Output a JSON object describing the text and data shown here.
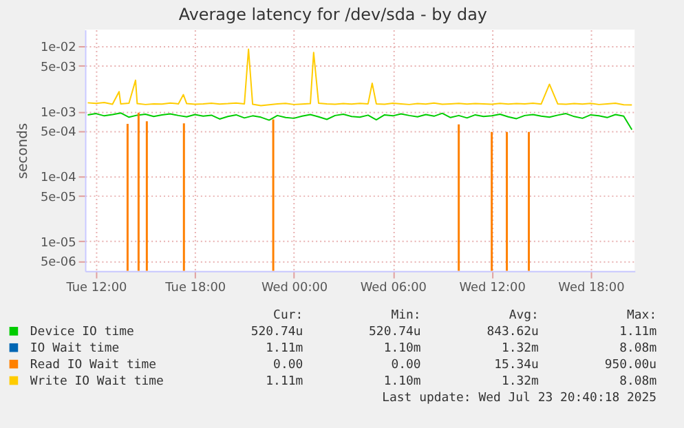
{
  "chart_data": {
    "type": "line",
    "title": "Average latency for /dev/sda - by day",
    "ylabel": "seconds",
    "log": true,
    "grid": true,
    "legend": "bottom",
    "marker": "none",
    "line_style": "solid",
    "xlim": [
      "2025-07-22T11:20",
      "2025-07-23T20:40"
    ],
    "xticks": [
      {
        "value": "2025-07-22T12:00",
        "label": "Tue 12:00"
      },
      {
        "value": "2025-07-22T18:00",
        "label": "Tue 18:00"
      },
      {
        "value": "2025-07-23T00:00",
        "label": "Wed 00:00"
      },
      {
        "value": "2025-07-23T06:00",
        "label": "Wed 06:00"
      },
      {
        "value": "2025-07-23T12:00",
        "label": "Wed 12:00"
      },
      {
        "value": "2025-07-23T18:00",
        "label": "Wed 18:00"
      }
    ],
    "ylim": [
      3.5e-06,
      0.018
    ],
    "yticks": [
      {
        "value": 0.01,
        "label": "1e-02"
      },
      {
        "value": 0.005,
        "label": "5e-03"
      },
      {
        "value": 0.001,
        "label": "1e-03"
      },
      {
        "value": 0.0005,
        "label": "5e-04"
      },
      {
        "value": 0.0001,
        "label": "1e-04"
      },
      {
        "value": 5e-05,
        "label": "5e-05"
      },
      {
        "value": 1e-05,
        "label": "1e-05"
      },
      {
        "value": 5e-06,
        "label": "5e-06"
      }
    ],
    "series": [
      {
        "name": "Device IO time",
        "color": "#00cc00",
        "x": [
          "2025-07-22T11:30",
          "2025-07-22T12:00",
          "2025-07-22T12:30",
          "2025-07-22T13:00",
          "2025-07-22T13:30",
          "2025-07-22T14:00",
          "2025-07-22T14:30",
          "2025-07-22T15:00",
          "2025-07-22T15:30",
          "2025-07-22T16:00",
          "2025-07-22T16:30",
          "2025-07-22T17:00",
          "2025-07-22T17:30",
          "2025-07-22T18:00",
          "2025-07-22T18:30",
          "2025-07-22T19:00",
          "2025-07-22T19:30",
          "2025-07-22T20:00",
          "2025-07-22T20:30",
          "2025-07-22T21:00",
          "2025-07-22T21:30",
          "2025-07-22T22:00",
          "2025-07-22T22:30",
          "2025-07-22T23:00",
          "2025-07-22T23:30",
          "2025-07-23T00:00",
          "2025-07-23T00:30",
          "2025-07-23T01:00",
          "2025-07-23T01:30",
          "2025-07-23T02:00",
          "2025-07-23T02:30",
          "2025-07-23T03:00",
          "2025-07-23T03:30",
          "2025-07-23T04:00",
          "2025-07-23T04:30",
          "2025-07-23T05:00",
          "2025-07-23T05:30",
          "2025-07-23T06:00",
          "2025-07-23T06:30",
          "2025-07-23T07:00",
          "2025-07-23T07:30",
          "2025-07-23T08:00",
          "2025-07-23T08:30",
          "2025-07-23T09:00",
          "2025-07-23T09:30",
          "2025-07-23T10:00",
          "2025-07-23T10:30",
          "2025-07-23T11:00",
          "2025-07-23T11:30",
          "2025-07-23T12:00",
          "2025-07-23T12:30",
          "2025-07-23T13:00",
          "2025-07-23T13:30",
          "2025-07-23T14:00",
          "2025-07-23T14:30",
          "2025-07-23T15:00",
          "2025-07-23T15:30",
          "2025-07-23T16:00",
          "2025-07-23T16:30",
          "2025-07-23T17:00",
          "2025-07-23T17:30",
          "2025-07-23T18:00",
          "2025-07-23T18:30",
          "2025-07-23T19:00",
          "2025-07-23T19:30",
          "2025-07-23T20:00",
          "2025-07-23T20:30"
        ],
        "values": [
          0.00088,
          0.00092,
          0.00085,
          0.00089,
          0.00094,
          0.00081,
          0.00087,
          0.0009,
          0.00083,
          0.00088,
          0.00091,
          0.00086,
          0.00082,
          0.00089,
          0.00084,
          0.00087,
          0.00076,
          0.00083,
          0.00088,
          0.00079,
          0.00085,
          0.00081,
          0.00073,
          0.00086,
          0.0008,
          0.00078,
          0.00084,
          0.00089,
          0.00082,
          0.00075,
          0.00086,
          0.0009,
          0.00083,
          0.00081,
          0.00087,
          0.00074,
          0.00088,
          0.00085,
          0.00091,
          0.00086,
          0.00082,
          0.00089,
          0.00084,
          0.00093,
          0.0008,
          0.00086,
          0.00079,
          0.00088,
          0.00083,
          0.00085,
          0.0009,
          0.00082,
          0.00077,
          0.00086,
          0.00089,
          0.00084,
          0.00081,
          0.00087,
          0.00092,
          0.00083,
          0.00078,
          0.00088,
          0.00085,
          0.0008,
          0.00089,
          0.00084,
          0.00052
        ]
      },
      {
        "name": "IO Wait time",
        "color": "#0066b3"
      },
      {
        "name": "Read IO Wait time",
        "color": "#ff8000",
        "type": "bar",
        "x": [
          "2025-07-22T13:55",
          "2025-07-22T14:35",
          "2025-07-22T15:05",
          "2025-07-22T17:20",
          "2025-07-22T22:45",
          "2025-07-23T10:00",
          "2025-07-23T12:00",
          "2025-07-23T12:55",
          "2025-07-23T14:15"
        ],
        "values": [
          0.00064,
          0.00095,
          0.0007,
          0.00065,
          0.00075,
          0.00063,
          0.00048,
          0.00048,
          0.00048
        ]
      },
      {
        "name": "Write IO Wait time",
        "color": "#ffcc00",
        "x": [
          "2025-07-22T11:30",
          "2025-07-22T12:00",
          "2025-07-22T12:30",
          "2025-07-22T13:00",
          "2025-07-22T13:24",
          "2025-07-22T13:30",
          "2025-07-22T14:00",
          "2025-07-22T14:24",
          "2025-07-22T14:30",
          "2025-07-22T15:00",
          "2025-07-22T15:30",
          "2025-07-22T16:00",
          "2025-07-22T16:30",
          "2025-07-22T17:00",
          "2025-07-22T17:18",
          "2025-07-22T17:30",
          "2025-07-22T18:00",
          "2025-07-22T18:30",
          "2025-07-22T19:00",
          "2025-07-22T19:30",
          "2025-07-22T20:00",
          "2025-07-22T20:30",
          "2025-07-22T21:00",
          "2025-07-22T21:15",
          "2025-07-22T21:30",
          "2025-07-22T22:00",
          "2025-07-22T22:30",
          "2025-07-22T23:00",
          "2025-07-22T23:30",
          "2025-07-23T00:00",
          "2025-07-23T00:30",
          "2025-07-23T01:00",
          "2025-07-23T01:12",
          "2025-07-23T01:30",
          "2025-07-23T02:00",
          "2025-07-23T02:30",
          "2025-07-23T03:00",
          "2025-07-23T03:30",
          "2025-07-23T04:00",
          "2025-07-23T04:30",
          "2025-07-23T04:45",
          "2025-07-23T05:00",
          "2025-07-23T05:30",
          "2025-07-23T06:00",
          "2025-07-23T06:30",
          "2025-07-23T07:00",
          "2025-07-23T07:30",
          "2025-07-23T08:00",
          "2025-07-23T08:30",
          "2025-07-23T09:00",
          "2025-07-23T09:30",
          "2025-07-23T10:00",
          "2025-07-23T10:30",
          "2025-07-23T11:00",
          "2025-07-23T11:30",
          "2025-07-23T12:00",
          "2025-07-23T12:30",
          "2025-07-23T13:00",
          "2025-07-23T13:30",
          "2025-07-23T14:00",
          "2025-07-23T14:30",
          "2025-07-23T15:00",
          "2025-07-23T15:30",
          "2025-07-23T16:00",
          "2025-07-23T16:30",
          "2025-07-23T17:00",
          "2025-07-23T17:30",
          "2025-07-23T18:00",
          "2025-07-23T18:30",
          "2025-07-23T19:00",
          "2025-07-23T19:30",
          "2025-07-23T20:00",
          "2025-07-23T20:30"
        ],
        "values": [
          0.00135,
          0.00132,
          0.00136,
          0.00128,
          0.002,
          0.0013,
          0.00133,
          0.003,
          0.00131,
          0.00127,
          0.0013,
          0.00129,
          0.00134,
          0.0013,
          0.0018,
          0.00131,
          0.00128,
          0.0013,
          0.00133,
          0.00129,
          0.00131,
          0.00134,
          0.0013,
          0.009,
          0.00128,
          0.00122,
          0.00126,
          0.0013,
          0.00132,
          0.00127,
          0.00129,
          0.00131,
          0.008,
          0.00133,
          0.0013,
          0.00128,
          0.00131,
          0.00129,
          0.00132,
          0.0013,
          0.0027,
          0.0013,
          0.00128,
          0.00133,
          0.0013,
          0.00127,
          0.00131,
          0.00129,
          0.00134,
          0.00128,
          0.0013,
          0.00132,
          0.00129,
          0.00131,
          0.0013,
          0.00128,
          0.00132,
          0.00129,
          0.00131,
          0.0013,
          0.00133,
          0.00129,
          0.0026,
          0.0013,
          0.00128,
          0.00131,
          0.00129,
          0.00132,
          0.00127,
          0.0013,
          0.00133,
          0.00126,
          0.00125
        ]
      }
    ],
    "annotations": [
      "Cur:",
      "Min:",
      "Avg:",
      "Max:",
      "520.74u",
      "520.74u",
      "843.62u",
      "1.11m",
      "1.11m",
      "1.10m",
      "1.32m",
      "8.08m",
      "0.00",
      "0.00",
      "15.34u",
      "950.00u",
      "1.11m",
      "1.10m",
      "1.32m",
      "8.08m",
      "Last update: Wed Jul 23 20:40:18 2025"
    ]
  }
}
